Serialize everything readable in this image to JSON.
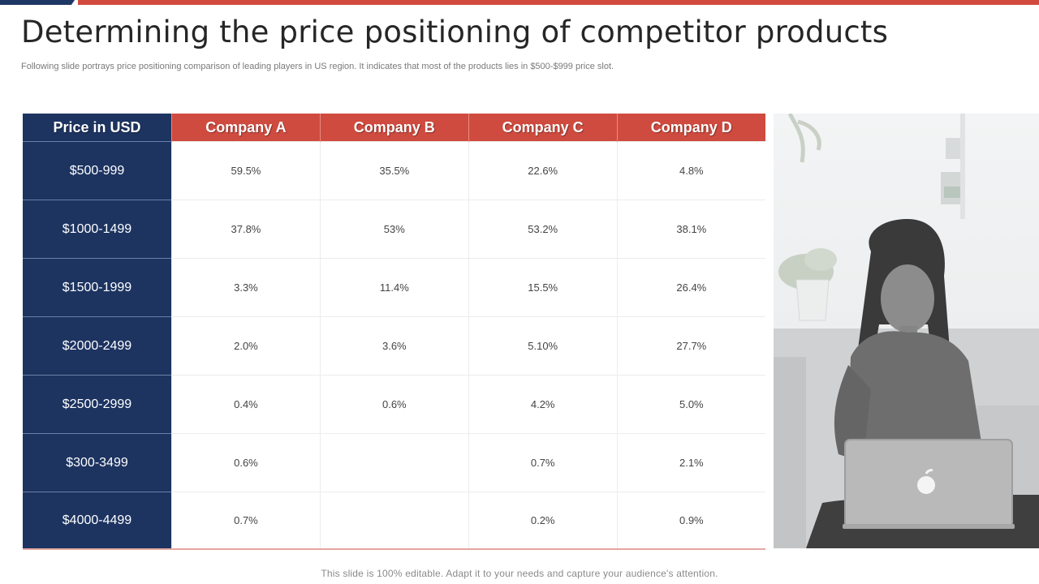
{
  "slide": {
    "title": "Determining the price positioning of competitor products",
    "subtitle": "Following slide portrays price positioning comparison of leading players in US region. It indicates that most of the products lies in $500-$999 price slot.",
    "footer": "This slide is 100% editable. Adapt it to your needs and capture your audience's attention."
  },
  "table": {
    "headers": [
      "Price in USD",
      "Company A",
      "Company B",
      "Company C",
      "Company D"
    ],
    "rows": [
      {
        "price": "$500-999",
        "values": [
          "59.5%",
          "35.5%",
          "22.6%",
          "4.8%"
        ]
      },
      {
        "price": "$1000-1499",
        "values": [
          "37.8%",
          "53%",
          "53.2%",
          "38.1%"
        ]
      },
      {
        "price": "$1500-1999",
        "values": [
          "3.3%",
          "11.4%",
          "15.5%",
          "26.4%"
        ]
      },
      {
        "price": "$2000-2499",
        "values": [
          "2.0%",
          "3.6%",
          "5.10%",
          "27.7%"
        ]
      },
      {
        "price": "$2500-2999",
        "values": [
          "0.4%",
          "0.6%",
          "4.2%",
          "5.0%"
        ]
      },
      {
        "price": "$300-3499",
        "values": [
          "0.6%",
          "",
          "0.7%",
          "2.1%"
        ]
      },
      {
        "price": "$4000-4499",
        "values": [
          "0.7%",
          "",
          "0.2%",
          "0.9%"
        ]
      }
    ]
  },
  "colors": {
    "navy": "#1d3461",
    "red": "#cf4b3f"
  },
  "image": {
    "icon": "woman-with-laptop-photo"
  }
}
